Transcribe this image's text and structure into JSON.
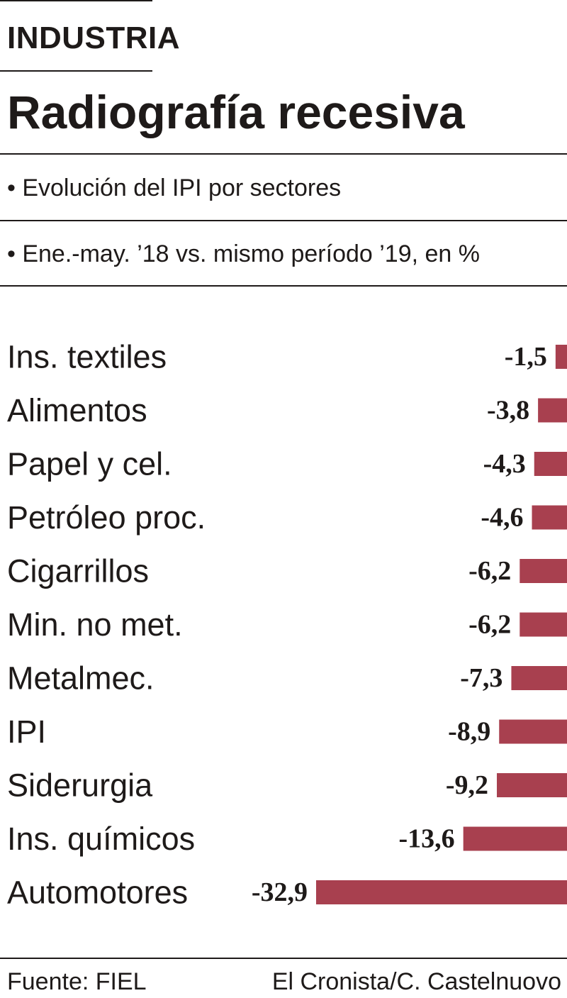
{
  "header": {
    "section": "INDUSTRIA",
    "title": "Radiografía recesiva",
    "subtitle_1": "• Evolución del IPI por sectores",
    "subtitle_2": "• Ene.-may. ’18 vs. mismo período ’19, en %"
  },
  "footer": {
    "source": "Fuente: FIEL",
    "credit": "El Cronista/C. Castelnuovo"
  },
  "colors": {
    "bar": "#a8404f",
    "text": "#1e1a19"
  },
  "chart_data": {
    "type": "bar",
    "orientation": "horizontal",
    "categories": [
      "Ins. textiles",
      "Alimentos",
      "Papel y cel.",
      "Petróleo proc.",
      "Cigarrillos",
      "Min. no met.",
      "Metalmec.",
      "IPI",
      "Siderurgia",
      "Ins. químicos",
      "Automotores"
    ],
    "values": [
      -1.5,
      -3.8,
      -4.3,
      -4.6,
      -6.2,
      -6.2,
      -7.3,
      -8.9,
      -9.2,
      -13.6,
      -32.9
    ],
    "value_labels": [
      "-1,5",
      "-3,8",
      "-4,3",
      "-4,6",
      "-6,2",
      "-6,2",
      "-7,3",
      "-8,9",
      "-9,2",
      "-13,6",
      "-32,9"
    ],
    "xlim": [
      -32.9,
      0
    ],
    "grid": false
  }
}
